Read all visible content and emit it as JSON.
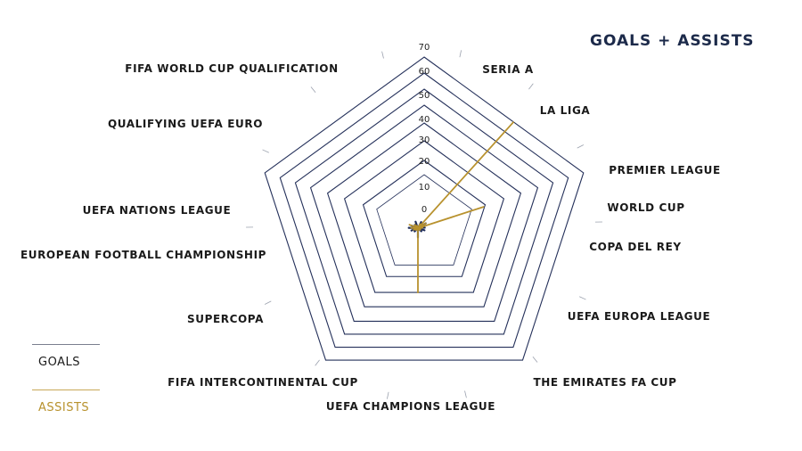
{
  "title": "GOALS + ASSISTS",
  "colors": {
    "goals": "#1f2d5a",
    "assists": "#b8922e",
    "grid": "#24305a"
  },
  "legend": [
    {
      "label": "GOALS",
      "color": "#1f2d5a"
    },
    {
      "label": "ASSISTS",
      "color": "#b8922e"
    }
  ],
  "chart_data": {
    "type": "radar",
    "title": "GOALS + ASSISTS",
    "ylim": [
      0,
      70
    ],
    "ticks": [
      0,
      10,
      20,
      30,
      40,
      50,
      60,
      70
    ],
    "categories": [
      "SERIA A",
      "LA LIGA",
      "PREMIER LEAGUE",
      "WORLD CUP",
      "COPA DEL REY",
      "UEFA EUROPA LEAGUE",
      "THE EMIRATES FA CUP",
      "UEFA CHAMPIONS LEAGUE",
      "FIFA INTERCONTINENTAL CUP",
      "SUPERCOPA",
      "EUROPEAN FOOTBALL CHAMPIONSHIP",
      "UEFA NATIONS LEAGUE",
      "QUALIFYING UEFA EURO",
      "FIFA WORLD CUP QUALIFICATION"
    ],
    "series": [
      {
        "name": "GOALS",
        "values": [
          3,
          2,
          4,
          2,
          3,
          3,
          2,
          4,
          2,
          3,
          4,
          3,
          2,
          3
        ]
      },
      {
        "name": "ASSISTS",
        "values": [
          2,
          62,
          4,
          30,
          2,
          1,
          1,
          28,
          1,
          2,
          3,
          4,
          2,
          1
        ]
      }
    ],
    "grid": true,
    "legend_position": "bottom-left"
  }
}
